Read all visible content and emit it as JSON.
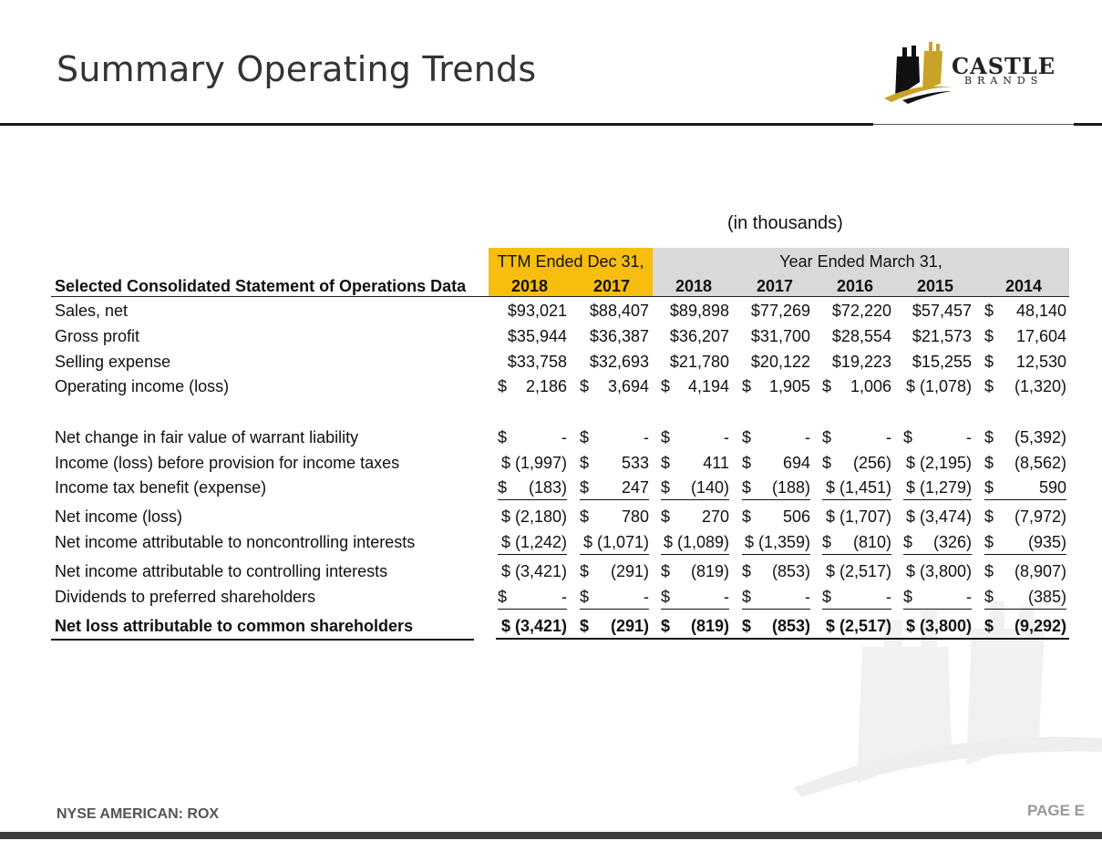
{
  "page": {
    "title": "Summary Operating Trends",
    "units_note": "(in thousands)",
    "footer_left": "NYSE AMERICAN: ROX",
    "footer_right": "PAGE E"
  },
  "logo": {
    "word": "CASTLE",
    "sub": "BRANDS"
  },
  "colors": {
    "ttm_header": "#f8be0f",
    "year_header": "#d9d9d9",
    "logo_gold": "#c9a227"
  },
  "table": {
    "section_title": "Selected Consolidated Statement of Operations Data",
    "group_ttm": "TTM Ended Dec 31,",
    "group_year": "Year Ended March 31,",
    "years": [
      "2018",
      "2017",
      "2018",
      "2017",
      "2016",
      "2015",
      "2014"
    ],
    "rows": [
      {
        "label": "Sales, net",
        "values": [
          "$93,021",
          "$88,407",
          "$89,898",
          "$77,269",
          "$72,220",
          "$57,457",
          "48,140"
        ],
        "dollars": [
          "",
          "",
          "",
          "",
          "",
          "",
          "$"
        ]
      },
      {
        "label": "Gross profit",
        "values": [
          "$35,944",
          "$36,387",
          "$36,207",
          "$31,700",
          "$28,554",
          "$21,573",
          "17,604"
        ],
        "dollars": [
          "",
          "",
          "",
          "",
          "",
          "",
          "$"
        ]
      },
      {
        "label": "Selling expense",
        "values": [
          "$33,758",
          "$32,693",
          "$21,780",
          "$20,122",
          "$19,223",
          "$15,255",
          "12,530"
        ],
        "dollars": [
          "",
          "",
          "",
          "",
          "",
          "",
          "$"
        ]
      },
      {
        "label": "Operating income (loss)",
        "values": [
          "2,186",
          "3,694",
          "4,194",
          "1,905",
          "1,006",
          "$ (1,078)",
          "(1,320)"
        ],
        "dollars": [
          "$",
          "$",
          "$",
          "$",
          "$",
          "",
          "$"
        ]
      },
      {
        "label": "Net change in fair value of warrant liability",
        "values": [
          "-",
          "-",
          "-",
          "-",
          "-",
          "-",
          "(5,392)"
        ],
        "dollars": [
          "$",
          "$",
          "$",
          "$",
          "$",
          "$",
          "$"
        ]
      },
      {
        "label": "Income (loss) before provision for income taxes",
        "values": [
          "$ (1,997)",
          "533",
          "411",
          "694",
          "(256)",
          "$ (2,195)",
          "(8,562)"
        ],
        "dollars": [
          "",
          "$",
          "$",
          "$",
          "$",
          "",
          "$"
        ]
      },
      {
        "label": "Income tax benefit (expense)",
        "values": [
          "(183)",
          "247",
          "(140)",
          "(188)",
          "$ (1,451)",
          "$ (1,279)",
          "590"
        ],
        "dollars": [
          "$",
          "$",
          "$",
          "$",
          "",
          "",
          "$"
        ]
      },
      {
        "label": "Net income (loss)",
        "values": [
          "$ (2,180)",
          "780",
          "270",
          "506",
          "$ (1,707)",
          "$ (3,474)",
          "(7,972)"
        ],
        "dollars": [
          "",
          "$",
          "$",
          "$",
          "",
          "",
          "$"
        ]
      },
      {
        "label": "Net income attributable to noncontrolling interests",
        "values": [
          "$ (1,242)",
          "$ (1,071)",
          "$ (1,089)",
          "$ (1,359)",
          "(810)",
          "(326)",
          "(935)"
        ],
        "dollars": [
          "",
          "",
          "",
          "",
          "$",
          "$",
          "$"
        ]
      },
      {
        "label": "Net income attributable to controlling interests",
        "values": [
          "$ (3,421)",
          "(291)",
          "(819)",
          "(853)",
          "$ (2,517)",
          "$ (3,800)",
          "(8,907)"
        ],
        "dollars": [
          "",
          "$",
          "$",
          "$",
          "",
          "",
          "$"
        ]
      },
      {
        "label": "Dividends to preferred shareholders",
        "values": [
          "-",
          "-",
          "-",
          "-",
          "-",
          "-",
          "(385)"
        ],
        "dollars": [
          "$",
          "$",
          "$",
          "$",
          "$",
          "$",
          "$"
        ]
      },
      {
        "label": "Net loss attributable to common shareholders",
        "values": [
          "$ (3,421)",
          "(291)",
          "(819)",
          "(853)",
          "$ (2,517)",
          "$ (3,800)",
          "(9,292)"
        ],
        "dollars": [
          "",
          "$",
          "$",
          "$",
          "",
          "",
          "$"
        ]
      }
    ]
  }
}
